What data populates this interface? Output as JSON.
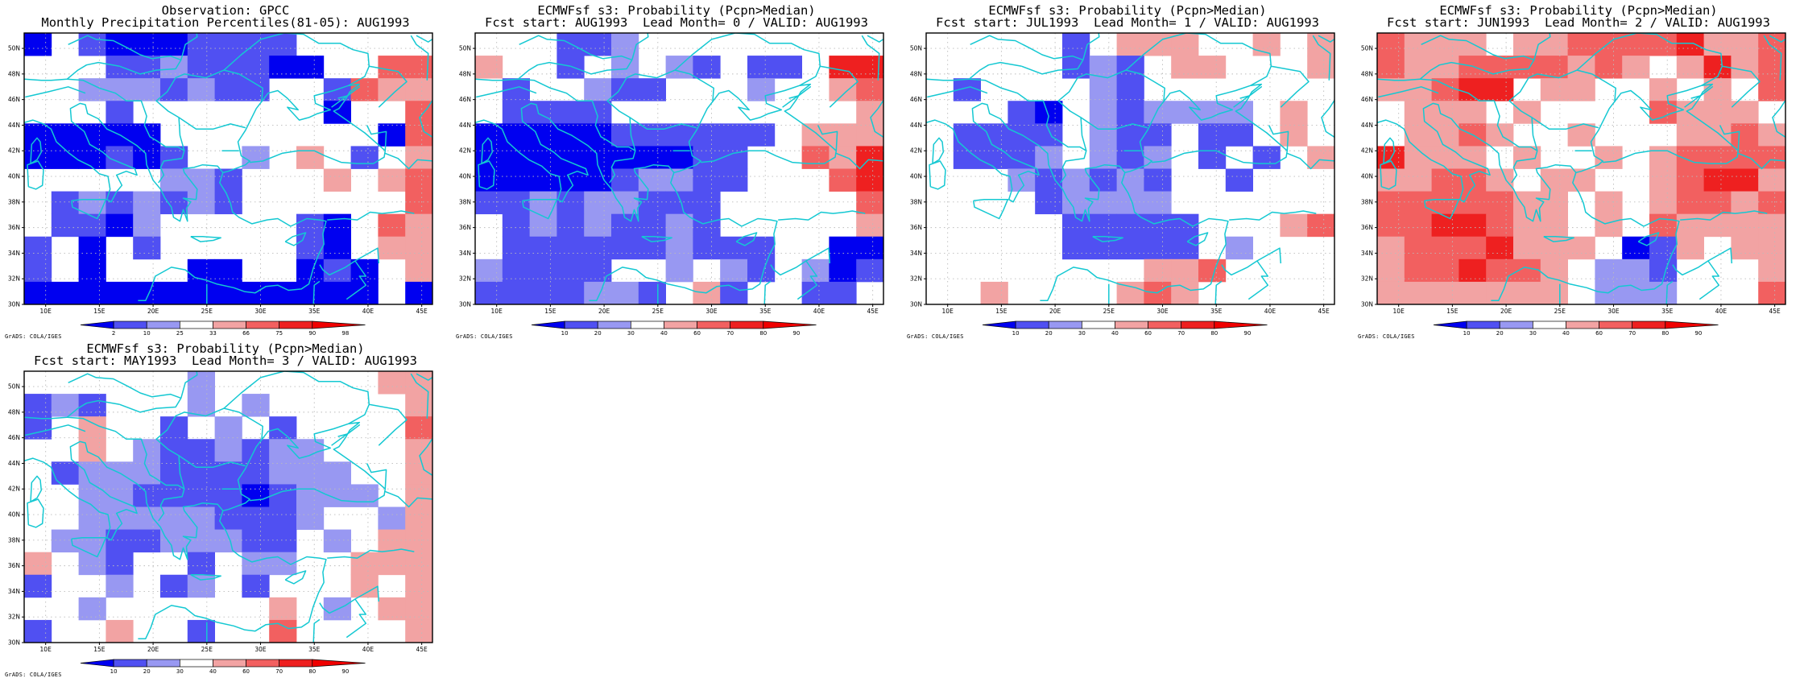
{
  "lon_labels": [
    "10E",
    "15E",
    "20E",
    "25E",
    "30E",
    "35E",
    "40E",
    "45E"
  ],
  "lat_labels": [
    "30N",
    "32N",
    "34N",
    "36N",
    "38N",
    "40N",
    "42N",
    "44N",
    "46N",
    "48N",
    "50N"
  ],
  "credit": "GrADS: COLA/IGES",
  "colors": {
    "levels": [
      "#0000f0",
      "#5050f2",
      "#9898f2",
      "#ffffff",
      "#f2a3a3",
      "#f26060",
      "#ee2020",
      "#f00000"
    ],
    "coast": "#14c8d2",
    "grid": "#bbbbbb"
  },
  "panels": [
    {
      "id": "obs",
      "title1": "Observation: GPCC",
      "title2": "Monthly Precipitation Percentiles(81-05): AUG1993",
      "colorbar_labels": [
        "2",
        "10",
        "25",
        "33",
        "66",
        "75",
        "90",
        "98"
      ],
      "grid_map": [
        "0W10001111WWWWW",
        "WWW11211100WW55",
        "WW2221211WW1544",
        "WWW1WWWWWWW0WW5",
        "00000WWWWWWWW05",
        "000101WW2W4W134",
        "WWWWW221WWW4W45",
        "W1212121WWWWWW5",
        "W1102WWWWW10354",
        "1W0W1WWWWW10W44",
        "1W0WWW00WW010W4",
        "0000000000000W0"
      ]
    },
    {
      "id": "lead0",
      "title1": "ECMWFsf s3: Probability (Pcpn>Median)",
      "title2": "Fcst start: AUG1993  Lead Month= 0 / VALID: AUG1993",
      "colorbar_labels": [
        "10",
        "20",
        "30",
        "40",
        "60",
        "70",
        "80",
        "90"
      ],
      "grid_map": [
        "WWW112WWWWWWWWW",
        "4WW1W2W21W11W66",
        "W1WW211WWW2W345",
        "W1111WWWWWWWWW4",
        "00000111111W444",
        "0000000011WW546",
        "0000012211WWW56",
        "112122111WWWW35",
        "W12121121WWWWW4",
        "W1111112111WW00",
        "21111WW2W21W201",
        "1111221341WW11W"
      ]
    },
    {
      "id": "lead1",
      "title1": "ECMWFsf s3: Probability (Pcpn>Median)",
      "title2": "Fcst start: JUL1993  Lead Month= 1 / VALID: AUG1993",
      "colorbar_labels": [
        "10",
        "20",
        "30",
        "40",
        "60",
        "70",
        "80",
        "90"
      ],
      "grid_map": [
        "WWWWW1W444WW4W4",
        "WWWWW121W44WWW4",
        "W1WWWW21WWWWWWW",
        "WWW10W212222W4W",
        "W1111W211W11W4W",
        "W1112W212W1W1W4",
        "WWW212121WW1WWW",
        "WWWW12222WWWWWW",
        "WWWWW11111WWW45",
        "WWWWW11111W2WWW",
        "WWWWWWWW445WWWW",
        "WW4WWWW454WWWWW"
      ]
    },
    {
      "id": "lead2",
      "title1": "ECMWFsf s3: Probability (Pcpn>Median)",
      "title2": "Fcst start: JUN1993  Lead Month= 2 / VALID: AUG1993",
      "colorbar_labels": [
        "10",
        "20",
        "30",
        "40",
        "60",
        "70",
        "80",
        "90"
      ],
      "grid_map": [
        "5444W4455556445",
        "5445555454W4645",
        "44566W44WW4W4W5",
        "W444W4WWWW5444W",
        "W4454WW4WWW4454",
        "6444W4WW4W45555",
        "44554W44WW45664",
        "5555544W4W45545",
        "5566544W4W54444",
        "45556444W014W44",
        "4556554W221WWW4",
        "4444444W222WWW5"
      ]
    },
    {
      "id": "lead3",
      "title1": "ECMWFsf s3: Probability (Pcpn>Median)",
      "title2": "Fcst start: MAY1993  Lead Month= 3 / VALID: AUG1993",
      "colorbar_labels": [
        "10",
        "20",
        "30",
        "40",
        "60",
        "70",
        "80",
        "90"
      ],
      "grid_map": [
        "WWWWWW2WWWWWW44",
        "121WWW2W2WWWWW4",
        "1W4WW1W2W1WWWW5",
        "WW4W2112122WWW4",
        "W12221111222WW4",
        "WW22111101222W4",
        "WW222221112WW24",
        "W221122211W2W44",
        "4W21WW1W22WW444",
        "1WW2W12W1WWW4W4",
        "WW2WWWWWW4W2W44",
        "1WW4WW1WW5WWWW4"
      ]
    }
  ]
}
